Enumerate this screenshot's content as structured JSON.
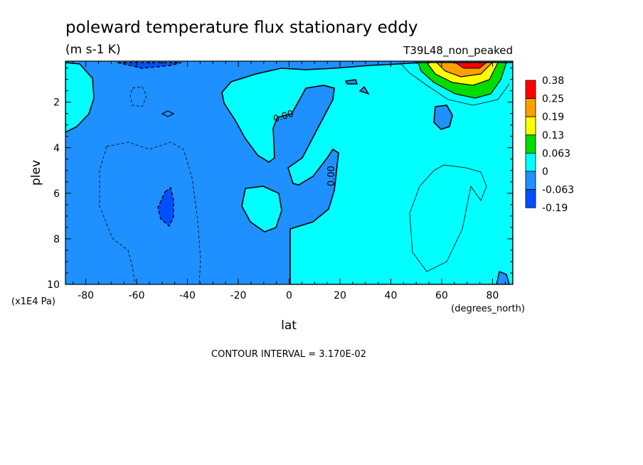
{
  "chart_data": {
    "type": "heatmap",
    "title": "poleward temperature flux stationary eddy",
    "units": "(m s-1 K)",
    "run_label": "T39L48_non_peaked",
    "xlabel": "lat",
    "xunits": "(degrees_north)",
    "ylabel": "plev",
    "yunits": "(x1E4 Pa)",
    "xlim": [
      -88,
      88
    ],
    "ylim": [
      10,
      0.2
    ],
    "x_ticks": [
      -80,
      -60,
      -40,
      -20,
      0,
      20,
      40,
      60,
      80
    ],
    "y_ticks": [
      2,
      4,
      6,
      8,
      10
    ],
    "contour_interval_label": "CONTOUR INTERVAL = 3.170E-02",
    "contour_labels": [
      "0.00",
      "0.00"
    ],
    "colorbar": {
      "labels": [
        "0.38",
        "0.25",
        "0.19",
        "0.13",
        "0.063",
        "0",
        "-0.063",
        "-0.19"
      ],
      "colors": [
        "#ff0000",
        "#ffa000",
        "#ffff00",
        "#00dc00",
        "#00ffff",
        "#1e90ff",
        "#0050ff"
      ]
    },
    "fill_colors": {
      "neg_weak": "#1e90ff",
      "pos_weak": "#00ffff",
      "neg_strong": "#0050ff",
      "pos_063": "#00dc00",
      "pos_13": "#ffff00",
      "pos_19": "#ffa000",
      "pos_25": "#ff0000"
    }
  }
}
